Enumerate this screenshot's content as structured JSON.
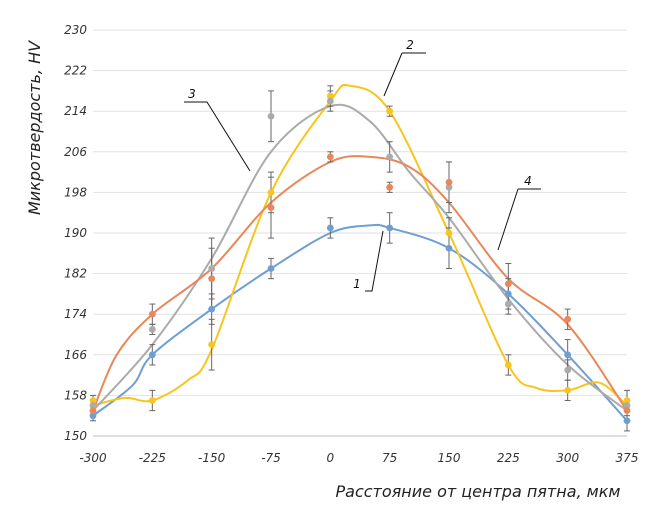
{
  "chart_data": {
    "type": "scatter",
    "xlabel": "Расстояние от центра пятна, мкм",
    "ylabel": "Микротвердость, HV",
    "xlim": [
      -300,
      375
    ],
    "ylim": [
      150,
      230
    ],
    "x_ticks": [
      -300,
      -225,
      -150,
      -75,
      0,
      75,
      150,
      225,
      300,
      375
    ],
    "y_ticks": [
      150,
      158,
      166,
      174,
      182,
      190,
      198,
      206,
      214,
      222,
      230
    ],
    "grid": "horizontal",
    "series": [
      {
        "name": "1",
        "color": "#6f9fd1",
        "x": [
          -300,
          -225,
          -150,
          -75,
          0,
          75,
          150,
          225,
          300,
          375
        ],
        "y": [
          154,
          166,
          175,
          183,
          191,
          191,
          187,
          178,
          166,
          153
        ],
        "err": [
          1,
          2,
          3,
          2,
          2,
          3,
          4,
          3,
          3,
          2
        ],
        "curve": [
          [
            -300,
            154
          ],
          [
            -250,
            160
          ],
          [
            -225,
            166
          ],
          [
            -150,
            175
          ],
          [
            -75,
            183
          ],
          [
            0,
            190
          ],
          [
            50,
            191.5
          ],
          [
            75,
            191
          ],
          [
            150,
            187
          ],
          [
            225,
            178
          ],
          [
            300,
            166
          ],
          [
            375,
            153
          ]
        ]
      },
      {
        "name": "2",
        "color": "#f7c51e",
        "x": [
          -300,
          -225,
          -150,
          -75,
          0,
          75,
          150,
          225,
          300,
          375
        ],
        "y": [
          157,
          157,
          168,
          198,
          217,
          214,
          190,
          164,
          159,
          157
        ],
        "err": [
          1,
          2,
          5,
          4,
          2,
          1,
          3,
          2,
          2,
          2
        ],
        "curve": [
          [
            -300,
            156
          ],
          [
            -260,
            157.5
          ],
          [
            -225,
            157
          ],
          [
            -180,
            161
          ],
          [
            -150,
            167
          ],
          [
            -75,
            198
          ],
          [
            0,
            216
          ],
          [
            25,
            219
          ],
          [
            75,
            214
          ],
          [
            150,
            190
          ],
          [
            225,
            164
          ],
          [
            260,
            159.5
          ],
          [
            300,
            159
          ],
          [
            340,
            160.5
          ],
          [
            375,
            156
          ]
        ]
      },
      {
        "name": "3",
        "color": "#ababab",
        "x": [
          -300,
          -225,
          -150,
          -75,
          0,
          75,
          150,
          225,
          300,
          375
        ],
        "y": [
          156,
          171,
          183,
          213,
          216,
          205,
          199,
          176,
          163,
          156
        ],
        "err": [
          1,
          1,
          6,
          5,
          2,
          3,
          5,
          2,
          2,
          1
        ],
        "curve": [
          [
            -300,
            155
          ],
          [
            -225,
            168
          ],
          [
            -150,
            185
          ],
          [
            -75,
            206
          ],
          [
            0,
            215
          ],
          [
            50,
            212
          ],
          [
            100,
            202
          ],
          [
            150,
            193
          ],
          [
            225,
            177
          ],
          [
            300,
            164
          ],
          [
            375,
            155
          ]
        ]
      },
      {
        "name": "4",
        "color": "#e8885a",
        "x": [
          -300,
          -225,
          -150,
          -75,
          0,
          75,
          150,
          225,
          300,
          375
        ],
        "y": [
          155,
          174,
          181,
          195,
          205,
          199,
          200,
          180,
          173,
          155
        ],
        "err": [
          1,
          2,
          6,
          6,
          1,
          1,
          4,
          4,
          2,
          1
        ],
        "curve": [
          [
            -300,
            155
          ],
          [
            -270,
            166
          ],
          [
            -225,
            174
          ],
          [
            -150,
            183
          ],
          [
            -75,
            196
          ],
          [
            0,
            204
          ],
          [
            50,
            205
          ],
          [
            100,
            203
          ],
          [
            150,
            196
          ],
          [
            225,
            181
          ],
          [
            300,
            172
          ],
          [
            375,
            155
          ]
        ]
      }
    ]
  }
}
